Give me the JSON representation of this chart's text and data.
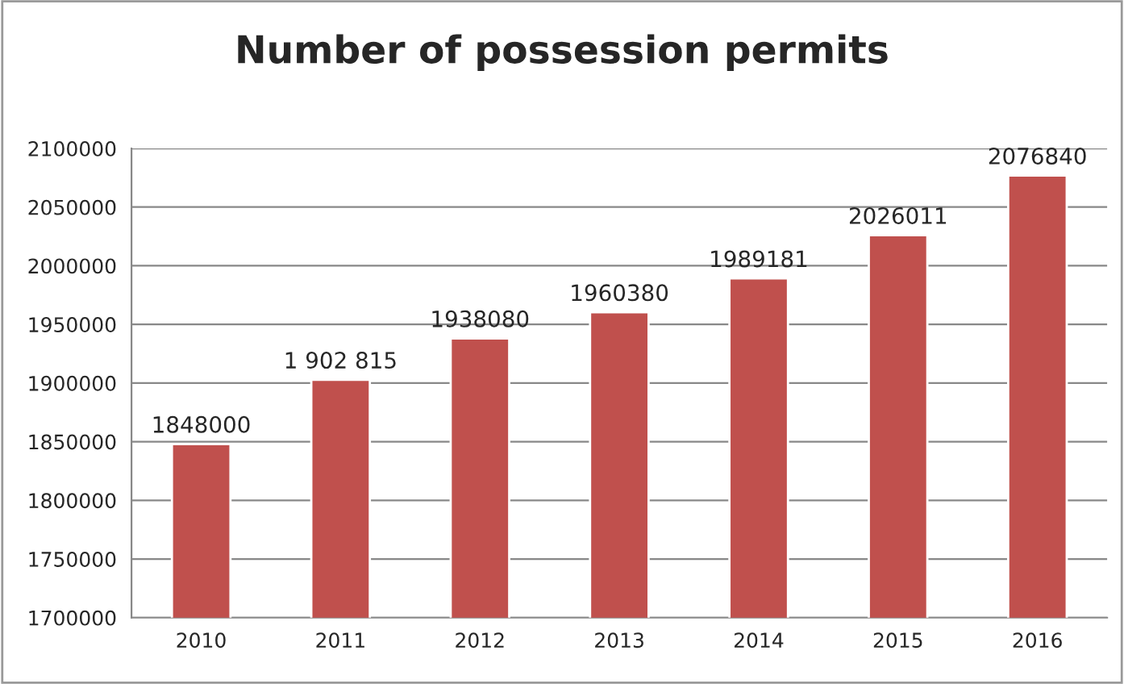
{
  "chart_data": {
    "type": "bar",
    "title": "Number of possession permits",
    "categories": [
      "2010",
      "2011",
      "2012",
      "2013",
      "2014",
      "2015",
      "2016"
    ],
    "values": [
      1848000,
      1902815,
      1938080,
      1960380,
      1989181,
      2026011,
      2076840
    ],
    "value_labels": [
      "1848000",
      "1 902 815",
      "1938080",
      "1960380",
      "1989181",
      "2026011",
      "2076840"
    ],
    "color": "#c0504d",
    "ylim": [
      1700000,
      2100000
    ],
    "yticks": [
      1700000,
      1750000,
      1800000,
      1850000,
      1900000,
      1950000,
      2000000,
      2050000,
      2100000
    ],
    "grid": "y"
  }
}
